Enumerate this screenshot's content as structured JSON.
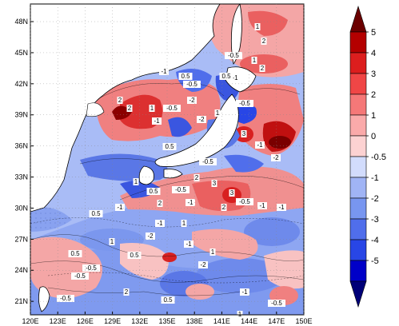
{
  "map": {
    "lat_ticks": [
      "48N",
      "45N",
      "42N",
      "39N",
      "36N",
      "33N",
      "30N",
      "27N",
      "24N",
      "21N"
    ],
    "lon_ticks": [
      "120E",
      "123E",
      "126E",
      "129E",
      "132E",
      "135E",
      "138E",
      "141E",
      "144E",
      "147E",
      "150E"
    ],
    "contour_labels": [
      "1",
      "2",
      "-0.5",
      "1",
      "2",
      "3",
      "-1",
      "-2",
      "0.5",
      "-0.5",
      "1",
      "-1",
      "0.5",
      "-2",
      "-1",
      "1",
      "-0.5",
      "2",
      "-1",
      "0.5",
      "2",
      "-0.5",
      "-2",
      "3",
      "-0.5",
      "2",
      "-0.5",
      "0.5",
      "1",
      "2",
      "-1",
      "2",
      "-0.5",
      "-1",
      "3",
      "-1",
      "0.5",
      "1",
      "-2",
      "-1",
      "0.5",
      "-0.5",
      "1",
      "-0.5",
      "2",
      "-1",
      "1",
      "-2",
      "-0.5",
      "0.5",
      "-1",
      "1",
      "0.5",
      "-1",
      "-0.5"
    ]
  },
  "colorbar": {
    "ticks": [
      "5",
      "4",
      "3",
      "2",
      "1",
      "0",
      "-0.5",
      "-1",
      "-2",
      "-3",
      "-4",
      "-5"
    ],
    "colors": [
      "#6b0000",
      "#b40000",
      "#dc1e1e",
      "#f04646",
      "#f57878",
      "#faaaaa",
      "#fcd2d2",
      "#d2dcfc",
      "#a0b4f5",
      "#7896f0",
      "#506eeb",
      "#2846e6",
      "#0000c8",
      "#000078"
    ]
  },
  "colors": {
    "land": "#ffffff",
    "coast": "#000000"
  }
}
